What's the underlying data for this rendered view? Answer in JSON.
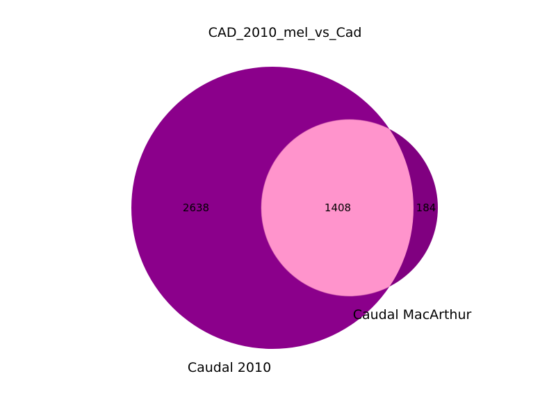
{
  "title": "CAD_2010_mel_vs_Cad",
  "sets": [
    {
      "name": "Caudal 2010",
      "only_count": "2638",
      "color": "#8b008b"
    },
    {
      "name": "Caudal MacArthur",
      "only_count": "184",
      "color": "#800080"
    }
  ],
  "intersection": {
    "count": "1408",
    "color": "#ff94cc"
  }
}
